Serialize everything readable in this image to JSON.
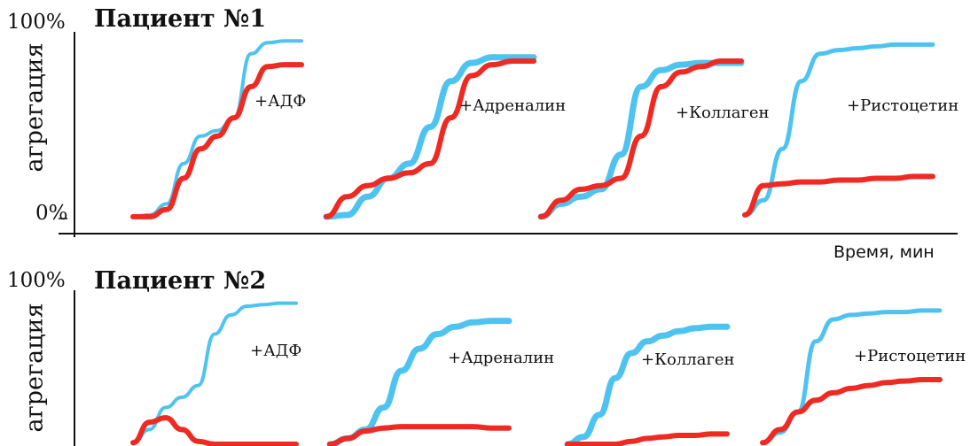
{
  "colors": {
    "healthy": "#4fc3f0",
    "patient": "#ee2a22",
    "axis": "#111111"
  },
  "chart_data": [
    {
      "type": "line",
      "title": "Пациент №1",
      "ylabel": "агрегация",
      "xlabel": "Время, мин",
      "ytick_top": "100%",
      "ytick_bottom": "0%",
      "ylim": [
        0,
        100
      ],
      "groups": [
        {
          "label": "+АДФ",
          "x": [
            0,
            0.1,
            0.2,
            0.3,
            0.4,
            0.5,
            0.6,
            0.7,
            0.8,
            0.9,
            1
          ],
          "series": [
            {
              "values": [
                1,
                2,
                8,
                30,
                45,
                48,
                55,
                90,
                96,
                97,
                97
              ]
            },
            {
              "values": [
                1,
                1,
                5,
                22,
                38,
                45,
                55,
                72,
                83,
                84,
                84
              ]
            }
          ]
        },
        {
          "label": "+Адреналин",
          "x": [
            0,
            0.1,
            0.2,
            0.3,
            0.4,
            0.5,
            0.6,
            0.7,
            0.8,
            0.9,
            1
          ],
          "series": [
            {
              "values": [
                1,
                2,
                12,
                22,
                30,
                50,
                75,
                85,
                88,
                88,
                88
              ]
            },
            {
              "values": [
                1,
                12,
                18,
                22,
                25,
                30,
                55,
                78,
                84,
                86,
                86
              ]
            }
          ]
        },
        {
          "label": "+Коллаген",
          "x": [
            0,
            0.1,
            0.2,
            0.3,
            0.4,
            0.5,
            0.6,
            0.7,
            0.8,
            0.9,
            1
          ],
          "series": [
            {
              "values": [
                1,
                8,
                12,
                16,
                35,
                72,
                81,
                84,
                85,
                85,
                85
              ]
            },
            {
              "values": [
                1,
                10,
                16,
                18,
                22,
                45,
                72,
                80,
                83,
                86,
                86
              ]
            }
          ]
        },
        {
          "label": "+Ристоцетин",
          "x": [
            0,
            0.1,
            0.2,
            0.3,
            0.4,
            0.5,
            0.6,
            0.7,
            0.8,
            0.9,
            1
          ],
          "series": [
            {
              "values": [
                2,
                10,
                38,
                75,
                90,
                92,
                93,
                94,
                95,
                95,
                95
              ]
            },
            {
              "values": [
                2,
                18,
                19,
                20,
                20,
                21,
                21,
                22,
                22,
                23,
                23
              ]
            }
          ]
        }
      ]
    },
    {
      "type": "line",
      "title": "Пациент №2",
      "ylabel": "агрегация",
      "ytick_top": "100%",
      "ylim": [
        0,
        100
      ],
      "groups": [
        {
          "label": "+АДФ",
          "x": [
            0,
            0.1,
            0.2,
            0.3,
            0.4,
            0.5,
            0.6,
            0.7,
            0.8,
            0.9,
            1
          ],
          "series": [
            {
              "values": [
                1,
                10,
                25,
                32,
                40,
                75,
                88,
                94,
                95,
                96,
                96
              ]
            },
            {
              "values": [
                1,
                15,
                18,
                10,
                2,
                0,
                0,
                0,
                0,
                0,
                0
              ]
            }
          ]
        },
        {
          "label": "+Адреналин",
          "x": [
            0,
            0.1,
            0.2,
            0.3,
            0.4,
            0.5,
            0.6,
            0.7,
            0.8,
            0.9,
            1
          ],
          "series": [
            {
              "values": [
                0,
                4,
                10,
                25,
                50,
                65,
                75,
                80,
                83,
                84,
                84
              ]
            },
            {
              "values": [
                0,
                4,
                9,
                11,
                12,
                12,
                12,
                12,
                12,
                11,
                11
              ]
            }
          ]
        },
        {
          "label": "+Коллаген",
          "x": [
            0,
            0.1,
            0.2,
            0.3,
            0.4,
            0.5,
            0.6,
            0.7,
            0.8,
            0.9,
            1
          ],
          "series": [
            {
              "values": [
                0,
                5,
                20,
                45,
                62,
                70,
                74,
                77,
                79,
                80,
                80
              ]
            },
            {
              "values": [
                0,
                0,
                0,
                0,
                2,
                4,
                5,
                6,
                6,
                7,
                7
              ]
            }
          ]
        },
        {
          "label": "+Ристоцетин",
          "x": [
            0,
            0.1,
            0.2,
            0.3,
            0.4,
            0.5,
            0.6,
            0.7,
            0.8,
            0.9,
            1
          ],
          "series": [
            {
              "values": [
                1,
                8,
                22,
                70,
                85,
                88,
                89,
                90,
                90,
                91,
                91
              ]
            },
            {
              "values": [
                1,
                10,
                22,
                30,
                35,
                38,
                40,
                42,
                43,
                44,
                44
              ]
            }
          ]
        }
      ]
    }
  ]
}
